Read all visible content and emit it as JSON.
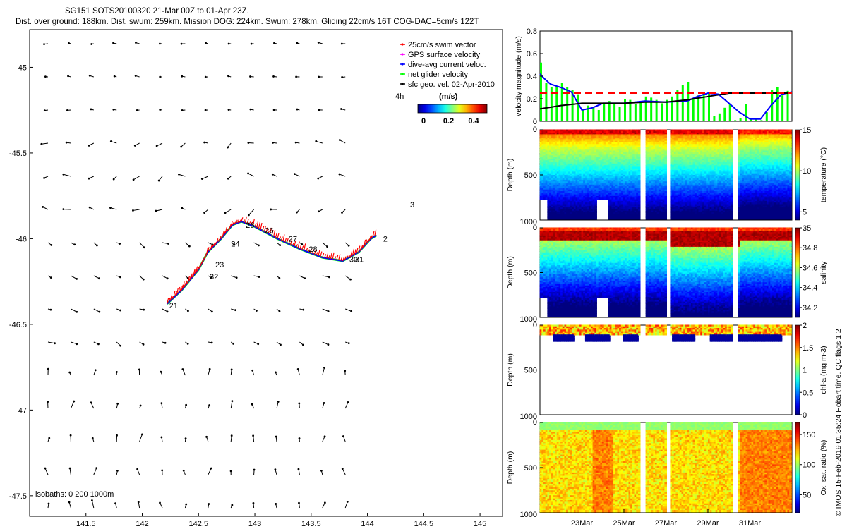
{
  "header": {
    "title": "SG151 SOTS20100320 21-Mar 00Z to 01-Apr 23Z.",
    "subtitle": "Dist. over ground: 188km. Dist. swum: 259km. Mission DOG: 224km. Swum: 278km. Gliding 22cm/s 16T COG-DAC=5cm/s 122T"
  },
  "side_note": "© IMOS 15-Feb-2019 01:35:24 Hobart time. QC flags 1  2",
  "colors": {
    "swim": "#ff0000",
    "gps": "#ff00ff",
    "dac": "#0000ff",
    "net": "#00ff00",
    "geo": "#000000",
    "limit": "#ff0000"
  },
  "chart_data": [
    {
      "type": "scatter",
      "name": "map",
      "xlim": [
        141.0,
        145.2
      ],
      "ylim": [
        -47.62,
        -44.78
      ],
      "xticks": [
        "141.5",
        "142",
        "142.5",
        "143",
        "143.5",
        "144",
        "144.5",
        "145"
      ],
      "xtick_values": [
        141.5,
        142,
        142.5,
        143,
        143.5,
        144,
        144.5,
        145
      ],
      "yticks": [
        "-45",
        "-45.5",
        "-46",
        "-46.5",
        "-47",
        "-47.5"
      ],
      "ytick_values": [
        -45,
        -45.5,
        -46,
        -46.5,
        -47,
        -47.5
      ],
      "legend": {
        "position": "top-right",
        "entries": [
          "25cm/s swim vector",
          "GPS surface velocity",
          "dive-avg current veloc.",
          "net glider velocity",
          "sfc geo. vel. 02-Apr-2010"
        ],
        "scale_label": "4h",
        "colorbar_title": "(m/s)",
        "colorbar_ticks": [
          "0",
          "0.2",
          "0.4"
        ]
      },
      "isobaths": "isobaths: 0   200  1000m",
      "track": [
        [
          142.22,
          -46.38
        ],
        [
          142.35,
          -46.3
        ],
        [
          142.5,
          -46.18
        ],
        [
          142.58,
          -46.08
        ],
        [
          142.7,
          -46.0
        ],
        [
          142.8,
          -45.92
        ],
        [
          142.88,
          -45.9
        ],
        [
          143.0,
          -45.93
        ],
        [
          143.2,
          -46.0
        ],
        [
          143.4,
          -46.06
        ],
        [
          143.6,
          -46.11
        ],
        [
          143.78,
          -46.13
        ],
        [
          143.92,
          -46.08
        ],
        [
          144.03,
          -46.0
        ],
        [
          144.08,
          -45.98
        ]
      ],
      "day_labels": [
        {
          "label": "21",
          "lon": 142.22,
          "lat": -46.39
        },
        {
          "label": "32",
          "lon": 142.58,
          "lat": -46.22
        },
        {
          "label": "23",
          "lon": 142.63,
          "lat": -46.15
        },
        {
          "label": "24",
          "lon": 142.77,
          "lat": -46.03
        },
        {
          "label": "26",
          "lon": 142.9,
          "lat": -45.92
        },
        {
          "label": "26",
          "lon": 143.07,
          "lat": -45.95
        },
        {
          "label": "27",
          "lon": 143.28,
          "lat": -46.0
        },
        {
          "label": "28",
          "lon": 143.46,
          "lat": -46.06
        },
        {
          "label": "30",
          "lon": 143.82,
          "lat": -46.12
        },
        {
          "label": "31",
          "lon": 143.87,
          "lat": -46.12
        },
        {
          "label": "2",
          "lon": 144.12,
          "lat": -46.0
        },
        {
          "label": "3",
          "lon": 144.36,
          "lat": -45.8
        }
      ]
    },
    {
      "type": "line",
      "name": "velocity",
      "ylabel": "velocity magnitude (m/s)",
      "ylim": [
        0,
        0.8
      ],
      "yticks": [
        "0",
        "0.2",
        "0.4",
        "0.6",
        "0.8"
      ],
      "xlim": [
        21.0,
        33.0
      ],
      "threshold": 0.25,
      "series": [
        {
          "values_x": [
            21.0,
            21.2,
            21.5,
            22.0,
            22.5,
            23.0,
            23.5,
            24.0,
            25.0,
            26.0,
            27.0,
            28.0,
            28.5,
            29.0,
            29.5,
            30.0,
            30.5,
            31.0,
            31.5,
            32.0,
            32.5,
            33.0
          ],
          "values_y": [
            0.42,
            0.38,
            0.33,
            0.3,
            0.26,
            0.1,
            0.12,
            0.16,
            0.16,
            0.18,
            0.17,
            0.18,
            0.22,
            0.25,
            0.24,
            0.16,
            0.08,
            0.02,
            0.02,
            0.14,
            0.24,
            0.26
          ]
        },
        {
          "values_x": [
            21.0,
            22.0,
            23.0,
            24.0,
            25.0,
            26.0,
            27.0,
            28.0,
            29.0,
            30.0,
            31.0,
            32.0,
            33.0
          ],
          "values_y": [
            0.11,
            0.14,
            0.16,
            0.16,
            0.16,
            0.17,
            0.17,
            0.19,
            0.22,
            0.25,
            0.25,
            0.25,
            0.25
          ]
        }
      ],
      "bars_x": [
        21.05,
        21.3,
        21.55,
        21.8,
        22.05,
        22.3,
        22.55,
        22.8,
        23.05,
        23.3,
        23.55,
        23.8,
        24.05,
        24.3,
        24.55,
        24.8,
        25.05,
        25.3,
        25.55,
        25.8,
        26.05,
        26.3,
        26.55,
        26.8,
        27.05,
        27.3,
        27.55,
        27.8,
        28.05,
        28.3,
        28.55,
        28.8,
        29.05,
        29.3,
        29.55,
        29.8,
        30.05,
        30.3,
        30.55,
        30.8,
        31.05,
        31.3,
        31.55,
        31.8,
        32.05,
        32.3,
        32.55,
        32.8
      ],
      "bars_y": [
        0.52,
        0.34,
        0.3,
        0.31,
        0.34,
        0.3,
        0.28,
        0.24,
        0.1,
        0.14,
        0.12,
        0.1,
        0.15,
        0.18,
        0.16,
        0.13,
        0.2,
        0.19,
        0.15,
        0.18,
        0.22,
        0.21,
        0.19,
        0.16,
        0.19,
        0.22,
        0.28,
        0.32,
        0.35,
        0.2,
        0.23,
        0.25,
        0.26,
        0.05,
        0.07,
        0.12,
        0.15,
        0.01,
        0.03,
        0.15,
        0.03,
        0.02,
        0.01,
        0.08,
        0.28,
        0.3,
        0.23,
        0.27
      ]
    },
    {
      "type": "heatmap",
      "name": "temperature",
      "ylabel": "Depth (m)",
      "clabel": "temperature (°C)",
      "ylim": [
        1000,
        0
      ],
      "yticks": [
        "0",
        "500",
        "1000"
      ],
      "cticks": [
        "5",
        "10",
        "15"
      ],
      "crange": [
        4,
        15
      ]
    },
    {
      "type": "heatmap",
      "name": "salinity",
      "ylabel": "Depth (m)",
      "clabel": "salinity",
      "ylim": [
        1000,
        0
      ],
      "yticks": [
        "0",
        "500",
        "1000"
      ],
      "cticks": [
        "34.2",
        "34.4",
        "34.6",
        "34.8",
        "35"
      ],
      "crange": [
        34.1,
        35.0
      ]
    },
    {
      "type": "heatmap",
      "name": "chla",
      "ylabel": "Depth (m)",
      "clabel": "chl-a (mg m-3)",
      "ylim": [
        1000,
        0
      ],
      "yticks": [
        "0",
        "500",
        "1000"
      ],
      "cticks": [
        "0",
        "0.5",
        "1",
        "1.5",
        "2"
      ],
      "crange": [
        0,
        2
      ]
    },
    {
      "type": "heatmap",
      "name": "oxygen",
      "ylabel": "Depth (m)",
      "clabel": "Ox. sat. ratio (%)",
      "ylim": [
        1000,
        0
      ],
      "yticks": [
        "0",
        "500",
        "1000"
      ],
      "cticks": [
        "50",
        "100",
        "150"
      ],
      "crange": [
        20,
        170
      ],
      "xticks": [
        "23Mar",
        "25Mar",
        "27Mar",
        "29Mar",
        "31Mar"
      ],
      "xtick_values": [
        23,
        25,
        27,
        29,
        31
      ],
      "xlim": [
        21.0,
        33.0
      ]
    }
  ]
}
